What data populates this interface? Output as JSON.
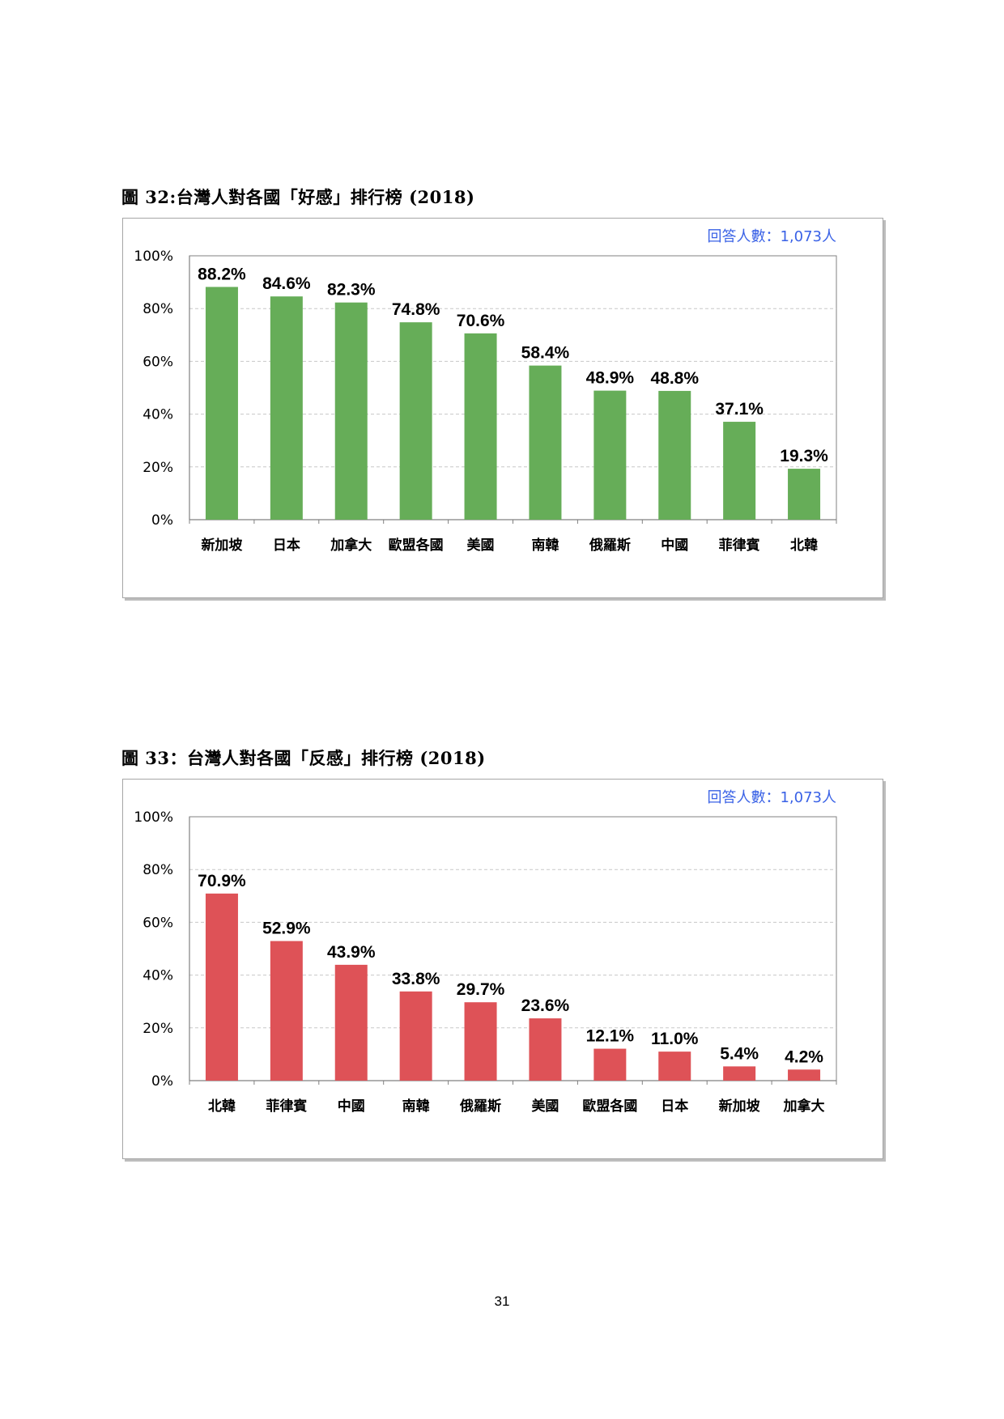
{
  "page": {
    "number": "31"
  },
  "colors": {
    "favorable_bar": "#66ad58",
    "unfavorable_bar": "#de5257",
    "note_text": "#3a62e6",
    "gridline": "#c8c8c8",
    "axis": "#808080"
  },
  "chart_data": [
    {
      "id": "favorable",
      "type": "bar",
      "title": "圖 32:台灣人對各國「好感」排行榜  (2018)",
      "note": "回答人數：1,073人",
      "categories": [
        "新加坡",
        "日本",
        "加拿大",
        "歐盟各國",
        "美國",
        "南韓",
        "俄羅斯",
        "中國",
        "菲律賓",
        "北韓"
      ],
      "values": [
        88.2,
        84.6,
        82.3,
        74.8,
        70.6,
        58.4,
        48.9,
        48.8,
        37.1,
        19.3
      ],
      "data_labels": [
        "88.2%",
        "84.6%",
        "82.3%",
        "74.8%",
        "70.6%",
        "58.4%",
        "48.9%",
        "48.8%",
        "37.1%",
        "19.3%"
      ],
      "y_ticks": [
        "0%",
        "20%",
        "40%",
        "60%",
        "80%",
        "100%"
      ],
      "ylim": [
        0,
        100
      ],
      "grid": true,
      "legend": "none",
      "color": "#66ad58"
    },
    {
      "id": "unfavorable",
      "type": "bar",
      "title": "圖 33：台灣人對各國「反感」排行榜  (2018)",
      "note": "回答人數：1,073人",
      "categories": [
        "北韓",
        "菲律賓",
        "中國",
        "南韓",
        "俄羅斯",
        "美國",
        "歐盟各國",
        "日本",
        "新加坡",
        "加拿大"
      ],
      "values": [
        70.9,
        52.9,
        43.9,
        33.8,
        29.7,
        23.6,
        12.1,
        11.0,
        5.4,
        4.2
      ],
      "data_labels": [
        "70.9%",
        "52.9%",
        "43.9%",
        "33.8%",
        "29.7%",
        "23.6%",
        "12.1%",
        "11.0%",
        "5.4%",
        "4.2%"
      ],
      "y_ticks": [
        "0%",
        "20%",
        "40%",
        "60%",
        "80%",
        "100%"
      ],
      "ylim": [
        0,
        100
      ],
      "grid": true,
      "legend": "none",
      "color": "#de5257"
    }
  ]
}
